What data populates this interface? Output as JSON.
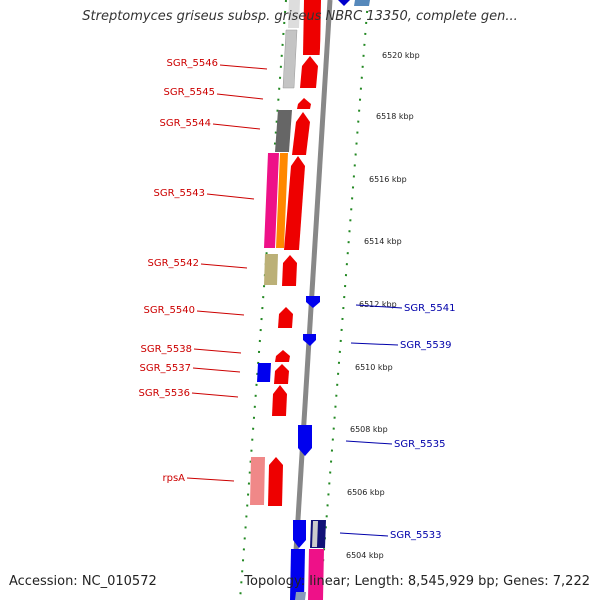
{
  "title": "Streptomyces griseus subsp. griseus NBRC 13350, complete gen...",
  "footer": {
    "accession": "Accession: NC_010572",
    "stats": "Topology: linear; Length: 8,545,929 bp; Genes: 7,222"
  },
  "colors": {
    "forward_strand_label": "#cc0000",
    "reverse_strand_label": "#0000aa",
    "forward_gene": "#ee0000",
    "reverse_gene": "#0000ee",
    "backbone": "#777777",
    "tick": "#228822"
  },
  "scale_labels": [
    "6520 kbp",
    "6518 kbp",
    "6516 kbp",
    "6514 kbp",
    "6512 kbp",
    "6510 kbp",
    "6508 kbp",
    "6506 kbp",
    "6504 kbp"
  ],
  "forward_gene_labels": [
    "SGR_5546",
    "SGR_5545",
    "SGR_5544",
    "SGR_5543",
    "SGR_5542",
    "SGR_5540",
    "SGR_5538",
    "SGR_5537",
    "SGR_5536",
    "rpsA"
  ],
  "reverse_gene_labels": [
    "SGR_5541",
    "SGR_5539",
    "SGR_5535",
    "SGR_5533"
  ]
}
